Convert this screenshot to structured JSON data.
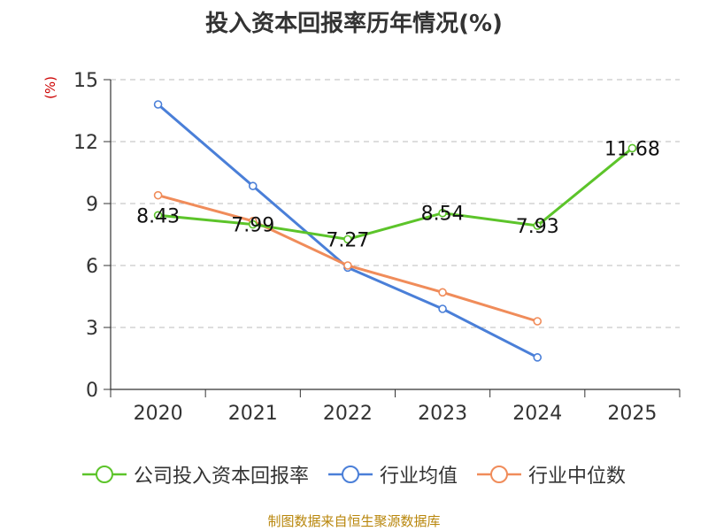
{
  "chart_data": {
    "type": "line",
    "title": "投入资本回报率历年情况(%)",
    "ylabel": "(%)",
    "xlabel": "",
    "categories": [
      "2020",
      "2021",
      "2022",
      "2023",
      "2024",
      "2025"
    ],
    "ylim": [
      0,
      15
    ],
    "yticks": [
      0,
      3,
      6,
      9,
      12,
      15
    ],
    "series": [
      {
        "name": "公司投入资本回报率",
        "color": "#5cc42a",
        "values": [
          8.43,
          7.99,
          7.27,
          8.54,
          7.93,
          11.68
        ],
        "labeled": true
      },
      {
        "name": "行业均值",
        "color": "#4a7fd8",
        "values": [
          13.8,
          9.85,
          5.9,
          3.9,
          1.55,
          null
        ],
        "labeled": false
      },
      {
        "name": "行业中位数",
        "color": "#f08c5a",
        "values": [
          9.4,
          8.15,
          6.0,
          4.7,
          3.3,
          null
        ],
        "labeled": false
      }
    ],
    "source": "制图数据来自恒生聚源数据库"
  }
}
